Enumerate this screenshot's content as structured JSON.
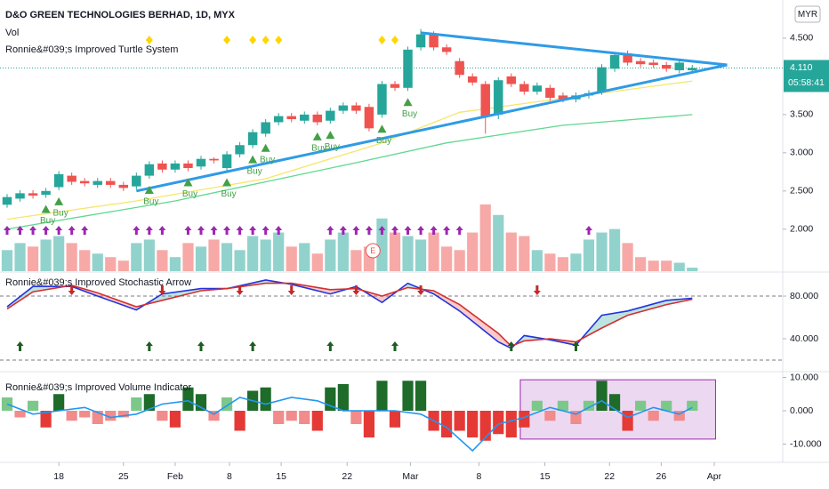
{
  "chart_data": [
    {
      "type": "candlestick",
      "title": "D&O GREEN TECHNOLOGIES BERHAD, 1D, MYX",
      "volume_label": "Vol",
      "indicator": "Ronnie&#039;s Improved Turtle System",
      "currency": "MYR",
      "countdown": "05:58:41",
      "last_price": {
        "value": 4.11,
        "label": "4.110"
      },
      "earnings": "E",
      "buy_label": "Buy",
      "color_up": "#26a69a",
      "color_down": "#ef5350",
      "xlim": [
        -0.55,
        60
      ],
      "xticks": [
        {
          "value": 4,
          "label": "18"
        },
        {
          "value": 9,
          "label": "25"
        },
        {
          "value": 13,
          "label": "Feb"
        },
        {
          "value": 17.2,
          "label": "8"
        },
        {
          "value": 21.2,
          "label": "15"
        },
        {
          "value": 26.3,
          "label": "22"
        },
        {
          "value": 31.2,
          "label": "Mar"
        },
        {
          "value": 36.5,
          "label": "8"
        },
        {
          "value": 41.6,
          "label": "15"
        },
        {
          "value": 46.6,
          "label": "22"
        },
        {
          "value": 50.6,
          "label": "26"
        },
        {
          "value": 54.7,
          "label": "Apr"
        }
      ],
      "ylim": [
        1.45,
        5.0
      ],
      "yticks": [
        {
          "value": 4.5,
          "label": "4.500"
        },
        {
          "value": 3.5,
          "label": "3.500"
        },
        {
          "value": 3,
          "label": "3.000"
        },
        {
          "value": 2.5,
          "label": "2.500"
        },
        {
          "value": 2,
          "label": "2.000"
        }
      ],
      "open": [
        2.32,
        2.4,
        2.47,
        2.45,
        2.55,
        2.7,
        2.63,
        2.58,
        2.63,
        2.58,
        2.56,
        2.7,
        2.86,
        2.78,
        2.86,
        2.82,
        2.92,
        2.8,
        2.98,
        3.1,
        3.25,
        3.4,
        3.48,
        3.42,
        3.5,
        3.42,
        3.55,
        3.62,
        3.6,
        3.5,
        3.9,
        3.85,
        4.38,
        4.55,
        4.38,
        4.2,
        4.0,
        3.9,
        3.5,
        4.0,
        3.9,
        3.8,
        3.85,
        3.75,
        3.7,
        3.75,
        3.8,
        4.1,
        4.3,
        4.2,
        4.18,
        4.15,
        4.08,
        4.08
      ],
      "high": [
        2.46,
        2.51,
        2.51,
        2.54,
        2.76,
        2.74,
        2.67,
        2.67,
        2.67,
        2.62,
        2.74,
        2.89,
        2.9,
        2.9,
        2.9,
        2.96,
        2.94,
        3.02,
        3.14,
        3.31,
        3.44,
        3.52,
        3.52,
        3.54,
        3.54,
        3.59,
        3.66,
        3.66,
        3.64,
        3.94,
        3.94,
        4.39,
        4.62,
        4.59,
        4.42,
        4.24,
        4.04,
        3.94,
        3.99,
        4.04,
        3.94,
        3.92,
        3.89,
        3.79,
        3.79,
        3.82,
        4.16,
        4.32,
        4.34,
        4.24,
        4.22,
        4.19,
        4.22,
        4.15
      ],
      "low": [
        2.28,
        2.36,
        2.4,
        2.41,
        2.51,
        2.58,
        2.56,
        2.54,
        2.54,
        2.5,
        2.52,
        2.66,
        2.74,
        2.74,
        2.76,
        2.78,
        2.86,
        2.76,
        2.94,
        3.06,
        3.21,
        3.36,
        3.4,
        3.38,
        3.36,
        3.38,
        3.51,
        3.51,
        3.28,
        3.46,
        3.81,
        3.81,
        4.34,
        4.34,
        4.28,
        3.98,
        3.88,
        3.25,
        3.44,
        3.86,
        3.76,
        3.76,
        3.68,
        3.66,
        3.66,
        3.71,
        3.76,
        4.06,
        4.14,
        4.12,
        4.11,
        4.06,
        4.04,
        4.04
      ],
      "close": [
        2.42,
        2.47,
        2.44,
        2.5,
        2.72,
        2.62,
        2.6,
        2.63,
        2.58,
        2.54,
        2.7,
        2.85,
        2.78,
        2.86,
        2.8,
        2.92,
        2.9,
        2.98,
        3.1,
        3.27,
        3.4,
        3.48,
        3.44,
        3.5,
        3.4,
        3.55,
        3.62,
        3.55,
        3.32,
        3.9,
        3.85,
        4.35,
        4.55,
        4.38,
        4.32,
        4.02,
        3.92,
        3.48,
        3.95,
        3.9,
        3.8,
        3.88,
        3.72,
        3.7,
        3.75,
        3.78,
        4.12,
        4.28,
        4.18,
        4.16,
        4.15,
        4.1,
        4.18,
        4.11
      ],
      "series": [
        {
          "color": "#f5e66a",
          "x": [
            0,
            10,
            20,
            29,
            35,
            42,
            53
          ],
          "values": [
            2.13,
            2.37,
            2.66,
            3.13,
            3.53,
            3.69,
            3.94
          ]
        },
        {
          "color": "#5fd98f",
          "x": [
            0,
            13,
            27,
            34,
            43,
            53
          ],
          "values": [
            2.0,
            2.37,
            2.87,
            3.13,
            3.36,
            3.5
          ]
        }
      ],
      "trendlines": [
        {
          "color": "#2f9be6",
          "x": [
            10,
            55.7
          ],
          "values": [
            2.5,
            4.15
          ]
        },
        {
          "color": "#2f9be6",
          "x": [
            32,
            55.7
          ],
          "values": [
            4.57,
            4.15
          ]
        }
      ],
      "buy_signals": [
        3,
        4,
        11,
        14,
        17,
        19,
        20,
        24,
        25,
        29,
        31
      ],
      "diamonds": [
        11,
        17,
        19,
        20,
        21,
        29,
        30
      ],
      "purple_arrows": [
        0,
        1,
        2,
        3,
        4,
        5,
        6,
        10,
        11,
        12,
        14,
        15,
        16,
        17,
        18,
        19,
        20,
        21,
        25,
        26,
        27,
        28,
        29,
        30,
        31,
        32,
        33,
        34,
        35,
        45
      ],
      "earnings_at": 28.3,
      "volume": {
        "ylim": [
          0,
          386
        ],
        "values": [
          30,
          40,
          35,
          45,
          50,
          40,
          30,
          25,
          20,
          15,
          40,
          45,
          30,
          20,
          40,
          35,
          45,
          40,
          30,
          50,
          45,
          55,
          35,
          40,
          25,
          45,
          55,
          30,
          35,
          75,
          55,
          50,
          45,
          55,
          35,
          30,
          55,
          95,
          80,
          55,
          50,
          30,
          25,
          20,
          25,
          45,
          55,
          60,
          40,
          20,
          15,
          15,
          12,
          5
        ]
      }
    },
    {
      "type": "line",
      "title": "Ronnie&#039;s Improved Stochastic Arrow",
      "ylim": [
        10,
        101.7
      ],
      "yticks": [
        {
          "value": 80,
          "label": "80.000"
        },
        {
          "value": 40,
          "label": "40.000"
        }
      ],
      "levels": [
        80,
        20
      ],
      "x": [
        0,
        2,
        5,
        7,
        10,
        12,
        15,
        17,
        20,
        22,
        25,
        27,
        29,
        31,
        33,
        35,
        38,
        39,
        40,
        42,
        44,
        46,
        48,
        51,
        53
      ],
      "series": [
        {
          "color": "#2233dd",
          "values": [
            70,
            89,
            89,
            80,
            67,
            82,
            87,
            87,
            95,
            91,
            82,
            89,
            74,
            92,
            82,
            66,
            37,
            31,
            43,
            39,
            34,
            62,
            66,
            76,
            78
          ]
        },
        {
          "color": "#d32f2f",
          "values": [
            68,
            84,
            90,
            83,
            70,
            76,
            85,
            87,
            92,
            92,
            86,
            87,
            80,
            88,
            85,
            72,
            45,
            33,
            38,
            40,
            37,
            50,
            62,
            72,
            77
          ]
        }
      ],
      "up_arrows": [
        1,
        11,
        15,
        19,
        25,
        30,
        39,
        44
      ],
      "down_arrows": [
        5,
        12,
        18,
        22,
        27,
        32,
        41
      ]
    },
    {
      "type": "bar",
      "title": "Ronnie&#039;s Improved Volume Indicator",
      "ylim": [
        -15.47,
        11.47
      ],
      "yticks": [
        {
          "value": 10,
          "label": "10.000"
        },
        {
          "value": 0,
          "label": "0.000"
        },
        {
          "value": -10,
          "label": "-10.000"
        }
      ],
      "values": [
        4,
        -2,
        3,
        -5,
        5,
        -3,
        -2,
        -4,
        -3,
        -2,
        4,
        5,
        -3,
        -5,
        7,
        5,
        -3,
        4,
        -6,
        6,
        7,
        -4,
        -3,
        -4,
        -6,
        7,
        8,
        -4,
        -8,
        9,
        -5,
        9,
        9,
        -6,
        -8,
        -6,
        -8,
        -9,
        -7,
        -8,
        -5,
        3,
        -3,
        3,
        -4,
        3,
        9,
        5,
        -6,
        3,
        -3,
        3,
        -3,
        3
      ],
      "color_up": "#1e6b2a",
      "color_up_weak": "#7cc88a",
      "color_down": "#e53935",
      "color_down_weak": "#f28b8b",
      "line": {
        "color": "#2196f3",
        "x": [
          0,
          2,
          4,
          6,
          8,
          10,
          12,
          14,
          16,
          18,
          20,
          22,
          24,
          26,
          28,
          30,
          32,
          34,
          36,
          38,
          40,
          42,
          44,
          46,
          48,
          50,
          52,
          53
        ],
        "values": [
          2,
          -1,
          0,
          1,
          -2,
          -1,
          2,
          3,
          -1,
          4,
          2,
          4,
          3,
          0,
          0,
          0,
          -1,
          -5,
          -12,
          -4,
          -2,
          1,
          -1,
          3,
          -2,
          1,
          -1,
          1
        ]
      },
      "highlight_box": {
        "x": [
          39.7,
          54.8
        ],
        "y": [
          -8.5,
          9.3
        ]
      }
    }
  ]
}
